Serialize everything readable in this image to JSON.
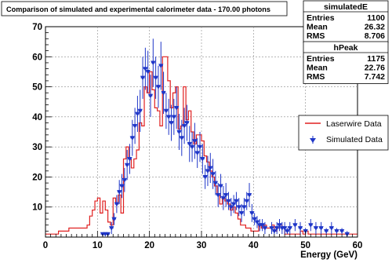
{
  "chart_data": {
    "type": "histogram",
    "title": "Comparison of simulated and experimental calorimeter data - 170.00 photons",
    "xlabel": "Energy (GeV)",
    "ylabel": "",
    "xlim": [
      0,
      60
    ],
    "ylim": [
      0,
      70
    ],
    "xticks": [
      0,
      10,
      20,
      30,
      40,
      50,
      60
    ],
    "yticks": [
      10,
      20,
      30,
      40,
      50,
      60,
      70
    ],
    "grid": true,
    "legend_position": "right",
    "stat_boxes": [
      {
        "name": "simulatedE",
        "rows": [
          [
            "Entries",
            "1100"
          ],
          [
            "Mean",
            "26.32"
          ],
          [
            "RMS",
            "8.706"
          ]
        ]
      },
      {
        "name": "hPeak",
        "rows": [
          [
            "Entries",
            "1175"
          ],
          [
            "Mean",
            "22.76"
          ],
          [
            "RMS",
            "7.742"
          ]
        ]
      }
    ],
    "series": [
      {
        "name": "Laserwire Data",
        "style": "step",
        "color": "#e02020",
        "bin_width": 0.5,
        "x_start": 0,
        "values": [
          1,
          1,
          1,
          1,
          1,
          2,
          2,
          2,
          2,
          3,
          3,
          3,
          3,
          3,
          3,
          3,
          4,
          7,
          9,
          12,
          13,
          8,
          12,
          9,
          5,
          4,
          13,
          11,
          14,
          8,
          26,
          30,
          26,
          23,
          26,
          29,
          38,
          37,
          50,
          48,
          55,
          49,
          43,
          42,
          37,
          60,
          60,
          52,
          43,
          48,
          50,
          36,
          37,
          50,
          39,
          42,
          35,
          31,
          34,
          34,
          32,
          27,
          25,
          22,
          20,
          17,
          14,
          11,
          13,
          12,
          11,
          9,
          10,
          8,
          6,
          4,
          4,
          3,
          3,
          2,
          2,
          2,
          4,
          3,
          4,
          3,
          3,
          4,
          2,
          3,
          4,
          3,
          1,
          1,
          1,
          1,
          1,
          1,
          2,
          1,
          2,
          1,
          1,
          1,
          1,
          1,
          1,
          1,
          1,
          1,
          1,
          1,
          1,
          1,
          1,
          1,
          1,
          1,
          1,
          1
        ]
      },
      {
        "name": "Simulated Data",
        "style": "errorbar",
        "color": "#1f36c8",
        "points": [
          {
            "x": 11.0,
            "y": 1,
            "e": 0
          },
          {
            "x": 11.5,
            "y": 1,
            "e": 0
          },
          {
            "x": 12.0,
            "y": 1,
            "e": 0
          },
          {
            "x": 12.7,
            "y": 3,
            "e": 2
          },
          {
            "x": 13.2,
            "y": 6,
            "e": 2
          },
          {
            "x": 13.7,
            "y": 11,
            "e": 3
          },
          {
            "x": 14.2,
            "y": 15,
            "e": 4
          },
          {
            "x": 14.7,
            "y": 17,
            "e": 4
          },
          {
            "x": 15.2,
            "y": 19,
            "e": 4
          },
          {
            "x": 15.7,
            "y": 24,
            "e": 5
          },
          {
            "x": 16.2,
            "y": 26,
            "e": 5
          },
          {
            "x": 16.7,
            "y": 33,
            "e": 6
          },
          {
            "x": 17.2,
            "y": 37,
            "e": 6
          },
          {
            "x": 17.7,
            "y": 41,
            "e": 6
          },
          {
            "x": 18.2,
            "y": 42,
            "e": 7
          },
          {
            "x": 18.7,
            "y": 53,
            "e": 7
          },
          {
            "x": 19.2,
            "y": 56,
            "e": 7
          },
          {
            "x": 19.7,
            "y": 55,
            "e": 7
          },
          {
            "x": 20.2,
            "y": 47,
            "e": 7
          },
          {
            "x": 20.7,
            "y": 58,
            "e": 8
          },
          {
            "x": 21.2,
            "y": 53,
            "e": 7
          },
          {
            "x": 21.7,
            "y": 50,
            "e": 7
          },
          {
            "x": 22.2,
            "y": 57,
            "e": 8
          },
          {
            "x": 22.7,
            "y": 48,
            "e": 7
          },
          {
            "x": 23.2,
            "y": 42,
            "e": 6
          },
          {
            "x": 23.7,
            "y": 40,
            "e": 6
          },
          {
            "x": 24.2,
            "y": 38,
            "e": 6
          },
          {
            "x": 24.7,
            "y": 40,
            "e": 6
          },
          {
            "x": 25.2,
            "y": 43,
            "e": 7
          },
          {
            "x": 25.7,
            "y": 35,
            "e": 6
          },
          {
            "x": 26.2,
            "y": 33,
            "e": 6
          },
          {
            "x": 26.7,
            "y": 37,
            "e": 6
          },
          {
            "x": 27.2,
            "y": 38,
            "e": 6
          },
          {
            "x": 27.7,
            "y": 31,
            "e": 6
          },
          {
            "x": 28.2,
            "y": 30,
            "e": 5
          },
          {
            "x": 28.7,
            "y": 32,
            "e": 6
          },
          {
            "x": 29.2,
            "y": 28,
            "e": 5
          },
          {
            "x": 29.7,
            "y": 30,
            "e": 5
          },
          {
            "x": 30.2,
            "y": 26,
            "e": 5
          },
          {
            "x": 30.7,
            "y": 20,
            "e": 4
          },
          {
            "x": 31.2,
            "y": 22,
            "e": 5
          },
          {
            "x": 31.7,
            "y": 23,
            "e": 5
          },
          {
            "x": 32.2,
            "y": 21,
            "e": 5
          },
          {
            "x": 32.7,
            "y": 18,
            "e": 4
          },
          {
            "x": 33.2,
            "y": 14,
            "e": 4
          },
          {
            "x": 33.7,
            "y": 17,
            "e": 4
          },
          {
            "x": 34.2,
            "y": 13,
            "e": 4
          },
          {
            "x": 34.7,
            "y": 14,
            "e": 4
          },
          {
            "x": 35.2,
            "y": 12,
            "e": 3
          },
          {
            "x": 35.7,
            "y": 10,
            "e": 3
          },
          {
            "x": 36.2,
            "y": 11,
            "e": 3
          },
          {
            "x": 36.7,
            "y": 12,
            "e": 3
          },
          {
            "x": 37.2,
            "y": 10,
            "e": 3
          },
          {
            "x": 37.7,
            "y": 8,
            "e": 3
          },
          {
            "x": 38.2,
            "y": 10,
            "e": 3
          },
          {
            "x": 38.7,
            "y": 12,
            "e": 3
          },
          {
            "x": 39.2,
            "y": 14,
            "e": 4
          },
          {
            "x": 39.7,
            "y": 8,
            "e": 3
          },
          {
            "x": 40.2,
            "y": 6,
            "e": 2
          },
          {
            "x": 40.7,
            "y": 5,
            "e": 2
          },
          {
            "x": 41.2,
            "y": 4,
            "e": 2
          },
          {
            "x": 41.7,
            "y": 4,
            "e": 2
          },
          {
            "x": 42.2,
            "y": 3,
            "e": 2
          },
          {
            "x": 43.5,
            "y": 3,
            "e": 2
          },
          {
            "x": 44.0,
            "y": 2,
            "e": 1
          },
          {
            "x": 44.5,
            "y": 3,
            "e": 2
          },
          {
            "x": 45.0,
            "y": 4,
            "e": 2
          },
          {
            "x": 45.5,
            "y": 3,
            "e": 2
          },
          {
            "x": 46.0,
            "y": 3,
            "e": 2
          },
          {
            "x": 46.5,
            "y": 2,
            "e": 1
          },
          {
            "x": 47.0,
            "y": 3,
            "e": 2
          },
          {
            "x": 48.0,
            "y": 4,
            "e": 2
          },
          {
            "x": 49.0,
            "y": 3,
            "e": 2
          },
          {
            "x": 50.0,
            "y": 2,
            "e": 1
          },
          {
            "x": 51.0,
            "y": 4,
            "e": 2
          },
          {
            "x": 52.0,
            "y": 3,
            "e": 2
          },
          {
            "x": 53.0,
            "y": 3,
            "e": 2
          },
          {
            "x": 54.0,
            "y": 2,
            "e": 1
          },
          {
            "x": 55.0,
            "y": 3,
            "e": 2
          },
          {
            "x": 56.0,
            "y": 2,
            "e": 1
          },
          {
            "x": 57.0,
            "y": 2,
            "e": 1
          },
          {
            "x": 58.0,
            "y": 1,
            "e": 1
          }
        ]
      }
    ]
  }
}
